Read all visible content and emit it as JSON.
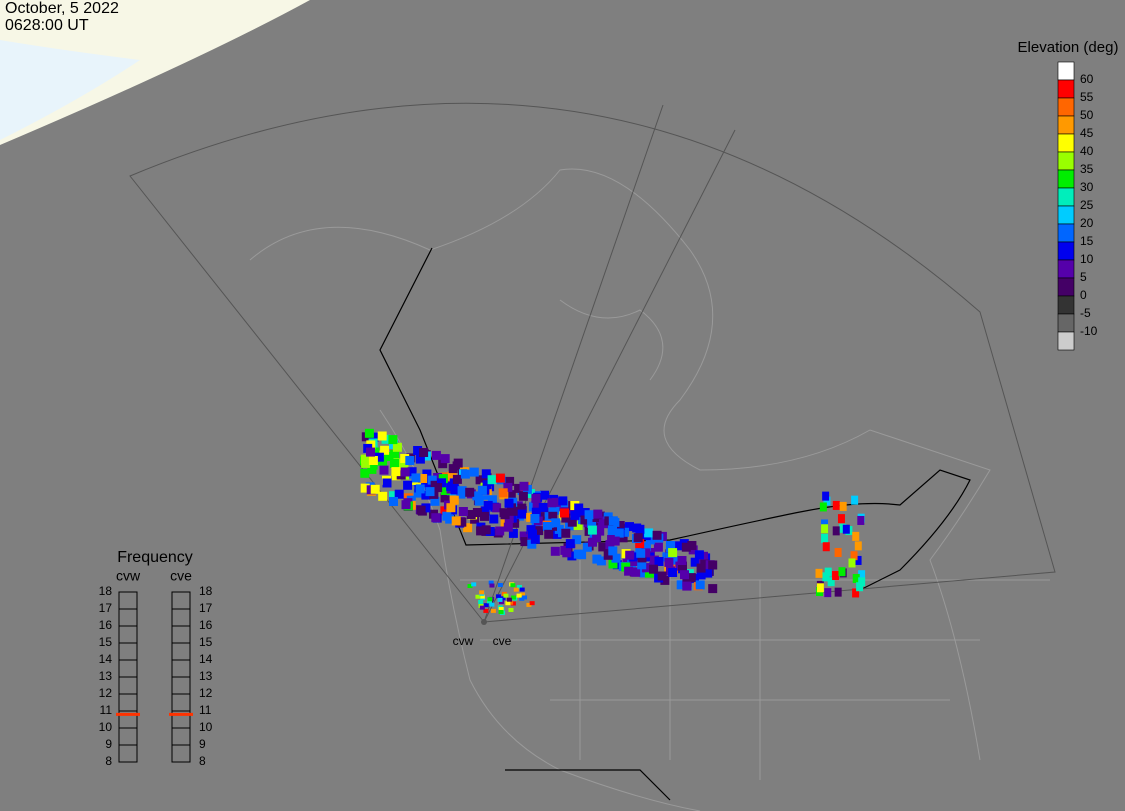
{
  "header": {
    "date": "October, 5 2022",
    "time": "0628:00 UT"
  },
  "elevation_legend": {
    "title": "Elevation (deg)",
    "ticks": [
      60,
      55,
      50,
      45,
      40,
      35,
      30,
      25,
      20,
      15,
      10,
      5,
      0,
      -5,
      -10
    ],
    "colors": [
      "#ffffff",
      "#ff0000",
      "#ff6600",
      "#ff9900",
      "#ffff00",
      "#99ff00",
      "#00ee00",
      "#00eebb",
      "#00ccff",
      "#0066ff",
      "#0000ee",
      "#5500aa",
      "#440066",
      "#333333",
      "#666666",
      "#cccccc"
    ]
  },
  "frequency_panel": {
    "title": "Frequency",
    "ticks": [
      18,
      17,
      16,
      15,
      14,
      13,
      12,
      11,
      10,
      9,
      8
    ],
    "columns": [
      {
        "name": "cvw",
        "value": 10.8
      },
      {
        "name": "cve",
        "value": 10.8
      }
    ],
    "marker_color": "#ff3300"
  },
  "radars": [
    {
      "label": "cvw"
    },
    {
      "label": "cve"
    }
  ]
}
